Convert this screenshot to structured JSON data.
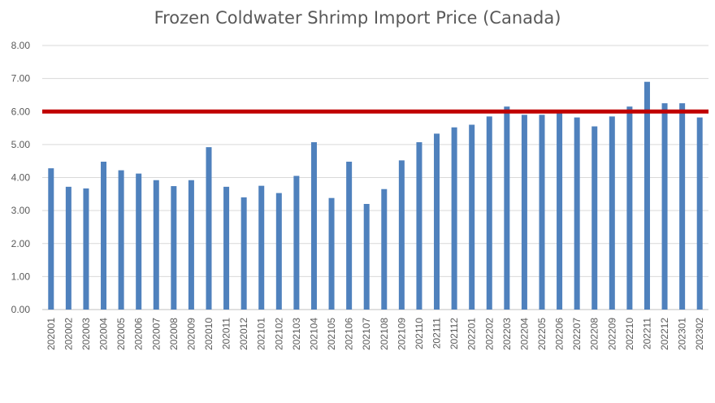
{
  "chart_data": {
    "type": "bar",
    "title": "Frozen Coldwater Shrimp Import Price (Canada)",
    "xlabel": "",
    "ylabel": "",
    "ylim": [
      0,
      8
    ],
    "yticks": [
      "0.00",
      "1.00",
      "2.00",
      "3.00",
      "4.00",
      "5.00",
      "6.00",
      "7.00",
      "8.00"
    ],
    "grid": true,
    "categories": [
      "202001",
      "202002",
      "202003",
      "202004",
      "202005",
      "202006",
      "202007",
      "202008",
      "202009",
      "202010",
      "202011",
      "202012",
      "202101",
      "202102",
      "202103",
      "202104",
      "202105",
      "202106",
      "202107",
      "202108",
      "202109",
      "202110",
      "202111",
      "202112",
      "202201",
      "202202",
      "202203",
      "202204",
      "202205",
      "202206",
      "202207",
      "202208",
      "202209",
      "202210",
      "202211",
      "202212",
      "202301",
      "202302"
    ],
    "values": [
      4.28,
      3.72,
      3.67,
      4.48,
      4.22,
      4.12,
      3.92,
      3.74,
      3.92,
      4.92,
      3.72,
      3.4,
      3.75,
      3.53,
      4.05,
      5.07,
      3.38,
      4.48,
      3.2,
      3.65,
      4.52,
      5.07,
      5.33,
      5.52,
      5.6,
      5.85,
      6.15,
      5.9,
      5.9,
      5.97,
      5.82,
      5.55,
      5.85,
      6.15,
      6.9,
      6.25,
      6.25,
      5.82
    ],
    "reference_line": {
      "value": 6.0,
      "color": "#c00000"
    },
    "bar_color": "#4f81bd"
  }
}
